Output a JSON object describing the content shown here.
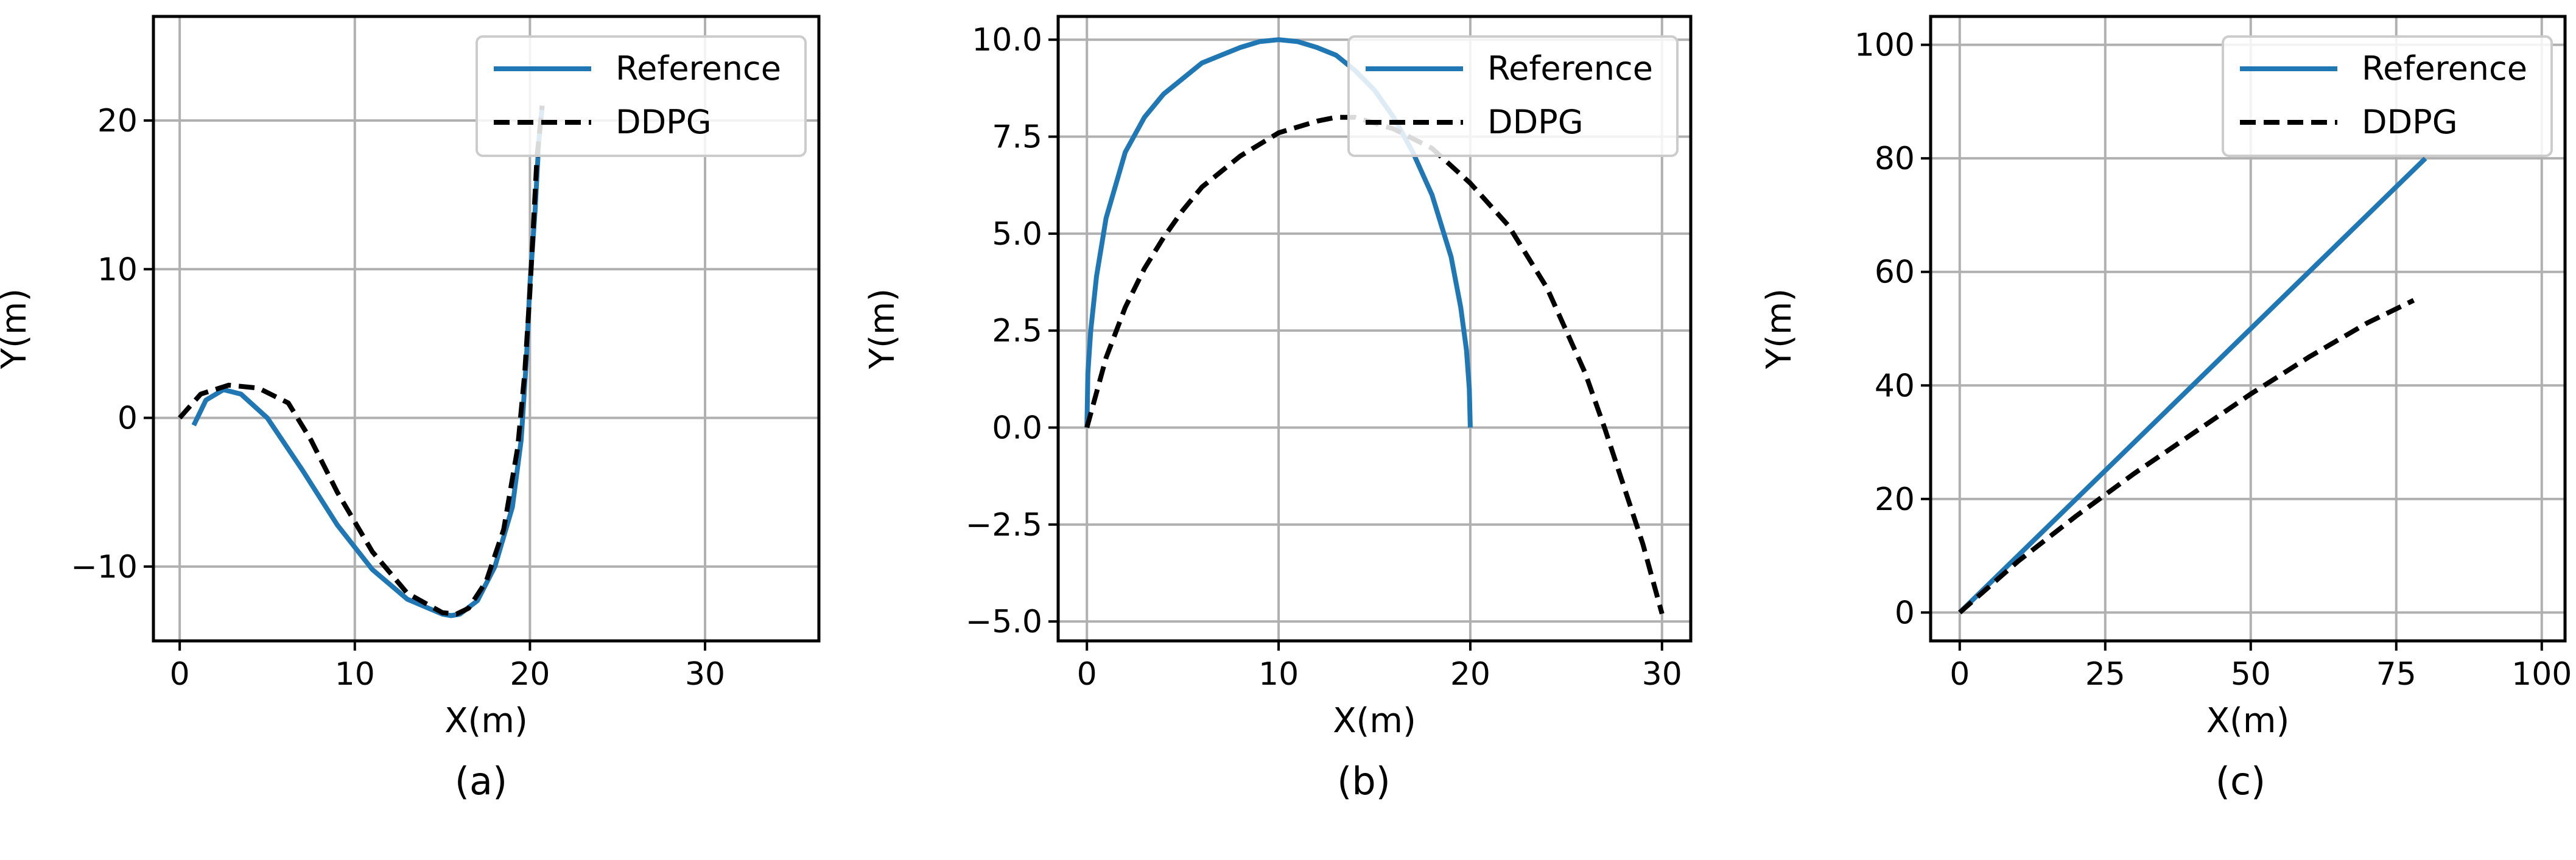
{
  "chart_data": [
    {
      "type": "line",
      "caption": "(a)",
      "xlabel": "X(m)",
      "ylabel": "Y(m)",
      "xlim": [
        -1.5,
        36.5
      ],
      "ylim": [
        -15,
        27
      ],
      "xticks": [
        0,
        10,
        20,
        30
      ],
      "yticks": [
        -10,
        0,
        10,
        20
      ],
      "xtick_labels": [
        "0",
        "10",
        "20",
        "30"
      ],
      "ytick_labels": [
        "−10",
        "0",
        "10",
        "20"
      ],
      "grid": true,
      "legend": "top-right",
      "series": [
        {
          "name": "Reference",
          "color": "#1f77b4",
          "style": "solid",
          "x": [
            0.8,
            1.5,
            2.5,
            3.5,
            5,
            7,
            9,
            11,
            13,
            15,
            15.5,
            16,
            17,
            18,
            19,
            19.5,
            19.8,
            20,
            20.3,
            20.5,
            20.7
          ],
          "y": [
            -0.5,
            1.2,
            1.9,
            1.6,
            0,
            -3.5,
            -7.2,
            -10.2,
            -12.2,
            -13.2,
            -13.3,
            -13.2,
            -12.3,
            -10,
            -6,
            -1.5,
            4,
            9,
            14,
            18.5,
            21
          ]
        },
        {
          "name": "DDPG",
          "color": "#000000",
          "style": "dashed",
          "x": [
            0,
            1.2,
            2.8,
            4.5,
            6.2,
            7.5,
            9,
            11,
            13,
            15,
            15.8,
            16.5,
            17.5,
            18.5,
            19.3,
            19.7,
            20,
            20.2,
            20.4,
            20.7
          ],
          "y": [
            0,
            1.6,
            2.2,
            2,
            1,
            -1.5,
            -5,
            -9,
            -11.8,
            -13.1,
            -13.2,
            -12.8,
            -11,
            -7.5,
            -2,
            3,
            8.5,
            13,
            17.5,
            21
          ]
        }
      ]
    },
    {
      "type": "line",
      "caption": "(b)",
      "xlabel": "X(m)",
      "ylabel": "Y(m)",
      "xlim": [
        -1.5,
        31.5
      ],
      "ylim": [
        -5.5,
        10.6
      ],
      "xticks": [
        0,
        10,
        20,
        30
      ],
      "yticks": [
        -5,
        -2.5,
        0,
        2.5,
        5,
        7.5,
        10
      ],
      "xtick_labels": [
        "0",
        "10",
        "20",
        "30"
      ],
      "ytick_labels": [
        "−5.0",
        "−2.5",
        "0.0",
        "2.5",
        "5.0",
        "7.5",
        "10.0"
      ],
      "grid": true,
      "legend": "top-right",
      "series": [
        {
          "name": "Reference",
          "color": "#1f77b4",
          "style": "solid",
          "x": [
            0,
            0.05,
            0.2,
            0.5,
            1,
            2,
            3,
            4,
            5,
            6,
            7,
            8,
            9,
            10,
            11,
            12,
            13,
            14,
            15,
            16,
            17,
            18,
            19,
            19.5,
            19.8,
            19.95,
            20
          ],
          "y": [
            0,
            1.4,
            2.5,
            3.9,
            5.4,
            7.1,
            8.0,
            8.6,
            9.0,
            9.4,
            9.6,
            9.8,
            9.95,
            10,
            9.95,
            9.8,
            9.6,
            9.2,
            8.7,
            8.0,
            7.1,
            6.0,
            4.4,
            3.1,
            2.0,
            1.0,
            0
          ]
        },
        {
          "name": "DDPG",
          "color": "#000000",
          "style": "dashed",
          "x": [
            0,
            1,
            2,
            3,
            4,
            5,
            6,
            8,
            10,
            12,
            13,
            14,
            16,
            18,
            20,
            22,
            24,
            26,
            27,
            28,
            29,
            29.5,
            30
          ],
          "y": [
            0,
            1.8,
            3.1,
            4.1,
            4.9,
            5.6,
            6.2,
            7.0,
            7.6,
            7.9,
            8.0,
            8.0,
            7.7,
            7.2,
            6.3,
            5.2,
            3.6,
            1.4,
            0,
            -1.5,
            -3.0,
            -3.9,
            -4.8
          ]
        }
      ]
    },
    {
      "type": "line",
      "caption": "(c)",
      "xlabel": "X(m)",
      "ylabel": "Y(m)",
      "xlim": [
        -5,
        104
      ],
      "ylim": [
        -5,
        105
      ],
      "xticks": [
        0,
        25,
        50,
        75,
        100
      ],
      "yticks": [
        0,
        20,
        40,
        60,
        80,
        100
      ],
      "xtick_labels": [
        "0",
        "25",
        "50",
        "75",
        "100"
      ],
      "ytick_labels": [
        "0",
        "20",
        "40",
        "60",
        "80",
        "100"
      ],
      "grid": true,
      "legend": "top-right",
      "series": [
        {
          "name": "Reference",
          "color": "#1f77b4",
          "style": "solid",
          "x": [
            0,
            80
          ],
          "y": [
            0,
            80
          ]
        },
        {
          "name": "DDPG",
          "color": "#000000",
          "style": "dashed",
          "x": [
            0,
            10,
            20,
            30,
            40,
            50,
            60,
            70,
            78
          ],
          "y": [
            0,
            9,
            17,
            24.5,
            31.5,
            38.5,
            45,
            51,
            55
          ]
        }
      ]
    }
  ]
}
